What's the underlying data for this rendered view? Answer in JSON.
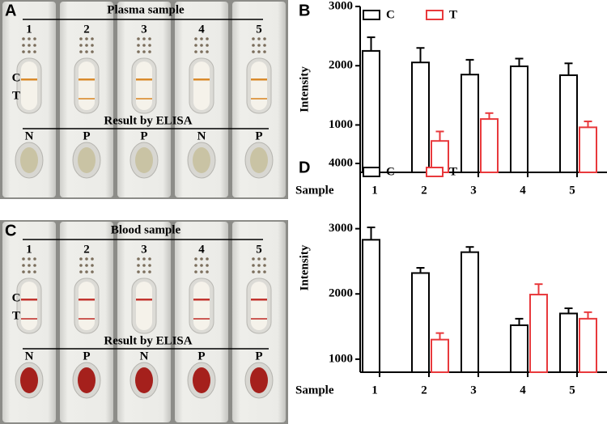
{
  "photos": [
    {
      "panel_label": "A",
      "title": "Plasma sample",
      "strip_numbers": [
        "1",
        "2",
        "3",
        "4",
        "5"
      ],
      "line_labels": [
        "C",
        "T"
      ],
      "result_title": "Result by ELISA",
      "results": [
        "N",
        "P",
        "P",
        "N",
        "P"
      ]
    },
    {
      "panel_label": "C",
      "title": "Blood sample",
      "strip_numbers": [
        "1",
        "2",
        "3",
        "4",
        "5"
      ],
      "line_labels": [
        "C",
        "T"
      ],
      "result_title": "Result by ELISA",
      "results": [
        "N",
        "P",
        "N",
        "P",
        "P"
      ]
    }
  ],
  "chart_data": [
    {
      "type": "bar",
      "panel_label": "B",
      "y_label": "Intensity",
      "x_label": "Sample",
      "categories": [
        "1",
        "2",
        "3",
        "4",
        "5"
      ],
      "series": [
        {
          "name": "C",
          "color": "#000000",
          "values": [
            2250,
            2055,
            1850,
            1990,
            1840
          ],
          "errors": [
            230,
            245,
            250,
            130,
            200
          ]
        },
        {
          "name": "T",
          "color": "#e8393c",
          "values": [
            null,
            730,
            1100,
            null,
            960
          ],
          "errors": [
            null,
            160,
            100,
            null,
            100
          ]
        }
      ],
      "ylim": [
        200,
        3000
      ],
      "yticks": [
        1000,
        2000,
        3000
      ],
      "legend": "top"
    },
    {
      "type": "bar",
      "panel_label": "D",
      "y_label": "Intensity",
      "x_label": "Sample",
      "categories": [
        "1",
        "2",
        "3",
        "4",
        "5"
      ],
      "series": [
        {
          "name": "C",
          "color": "#000000",
          "values": [
            2830,
            2320,
            2640,
            1520,
            1700
          ],
          "errors": [
            190,
            80,
            80,
            100,
            80
          ]
        },
        {
          "name": "T",
          "color": "#e8393c",
          "values": [
            null,
            1300,
            null,
            1990,
            1620
          ],
          "errors": [
            null,
            100,
            null,
            160,
            100
          ]
        }
      ],
      "ylim": [
        800,
        4000
      ],
      "yticks": [
        1000,
        2000,
        3000,
        4000
      ],
      "legend": "top"
    }
  ]
}
